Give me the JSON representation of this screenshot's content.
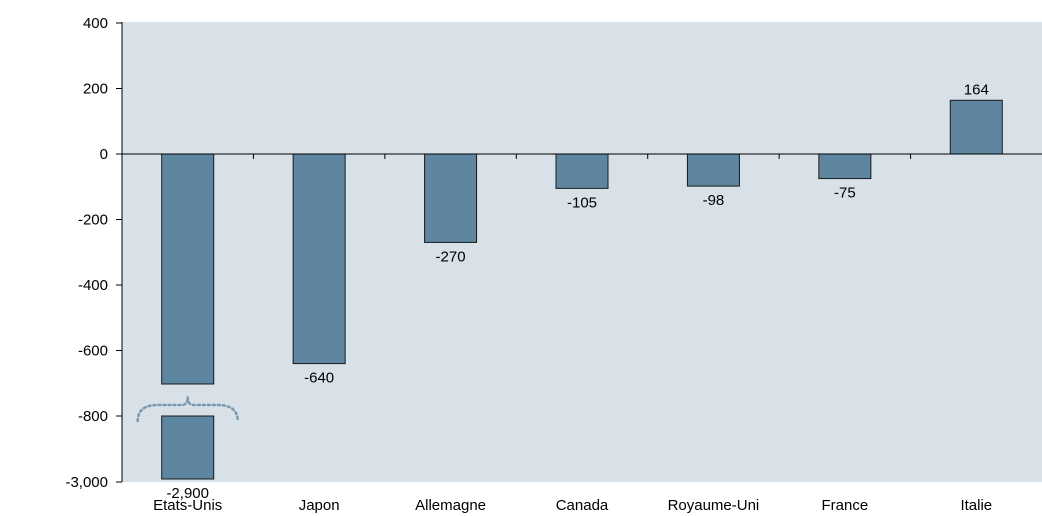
{
  "chart_data": {
    "type": "bar",
    "title": "",
    "xlabel": "",
    "ylabel": "",
    "categories": [
      "Etats-Unis",
      "Japon",
      "Allemagne",
      "Canada",
      "Royaume-Uni",
      "France",
      "Italie"
    ],
    "values": [
      -2900,
      -640,
      -270,
      -105,
      -98,
      -75,
      164
    ],
    "data_labels": [
      "-2,900",
      "-640",
      "-270",
      "-105",
      "-98",
      "-75",
      "164"
    ],
    "ylim": [
      -3000,
      400
    ],
    "axis_break": {
      "between": [
        -3000,
        -800
      ],
      "note": "broken y-axis; Etats-Unis bar shown with a break"
    },
    "yticks": [
      -3000,
      -800,
      -600,
      -400,
      -200,
      0,
      200,
      400
    ],
    "ytick_labels": [
      "-3,000",
      "-800",
      "-600",
      "-400",
      "-200",
      "0",
      "200",
      "400"
    ],
    "grid": false,
    "legend": "none",
    "colors": {
      "plot_background": "#d8e0e8",
      "bar_fill": "#5e86a0",
      "bar_stroke": "#1a1a1a",
      "axis": "#000000",
      "break_marker": "#7c98ac"
    }
  }
}
